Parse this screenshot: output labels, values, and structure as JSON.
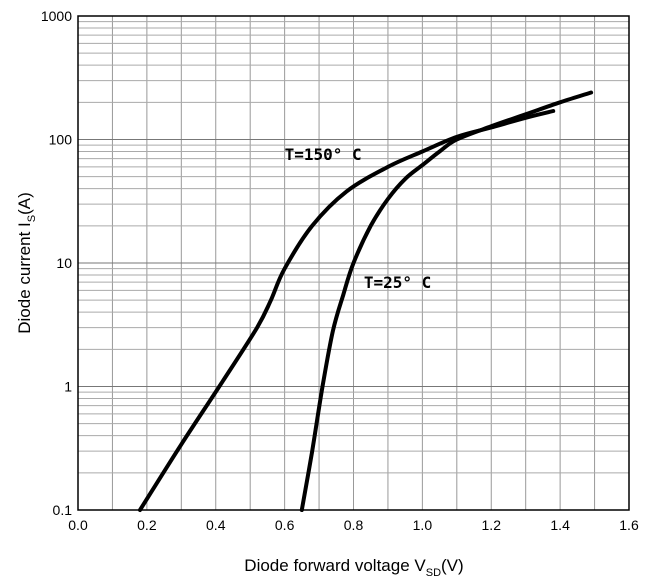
{
  "chart_data": {
    "type": "line",
    "xlabel": {
      "main": "Diode forward voltage V",
      "sub": "SD",
      "unit": "(V)"
    },
    "ylabel": {
      "main": "Diode current I",
      "sub": "S",
      "unit": "(A)"
    },
    "xlim": [
      0.0,
      1.6
    ],
    "ylim": [
      0.1,
      1000
    ],
    "y_scale": "log",
    "grid": true,
    "x_ticks": [
      "0.0",
      "0.2",
      "0.4",
      "0.6",
      "0.8",
      "1.0",
      "1.2",
      "1.4",
      "1.6"
    ],
    "y_ticks": [
      "0.1",
      "1",
      "10",
      "100",
      "1000"
    ],
    "series": [
      {
        "name": "T=150° C",
        "x": [
          0.18,
          0.3,
          0.42,
          0.52,
          0.56,
          0.6,
          0.68,
          0.78,
          0.9,
          1.0,
          1.1,
          1.2,
          1.3,
          1.38
        ],
        "y": [
          0.1,
          0.34,
          1.1,
          3.0,
          5.0,
          9.0,
          20,
          38,
          60,
          80,
          105,
          125,
          150,
          170
        ]
      },
      {
        "name": "T=25° C",
        "x": [
          0.65,
          0.68,
          0.71,
          0.74,
          0.77,
          0.8,
          0.85,
          0.9,
          0.95,
          1.0,
          1.05,
          1.1,
          1.2,
          1.3,
          1.4,
          1.49
        ],
        "y": [
          0.1,
          0.3,
          1.0,
          2.8,
          5.5,
          10,
          20,
          33,
          48,
          62,
          80,
          100,
          128,
          160,
          200,
          240
        ]
      }
    ]
  }
}
